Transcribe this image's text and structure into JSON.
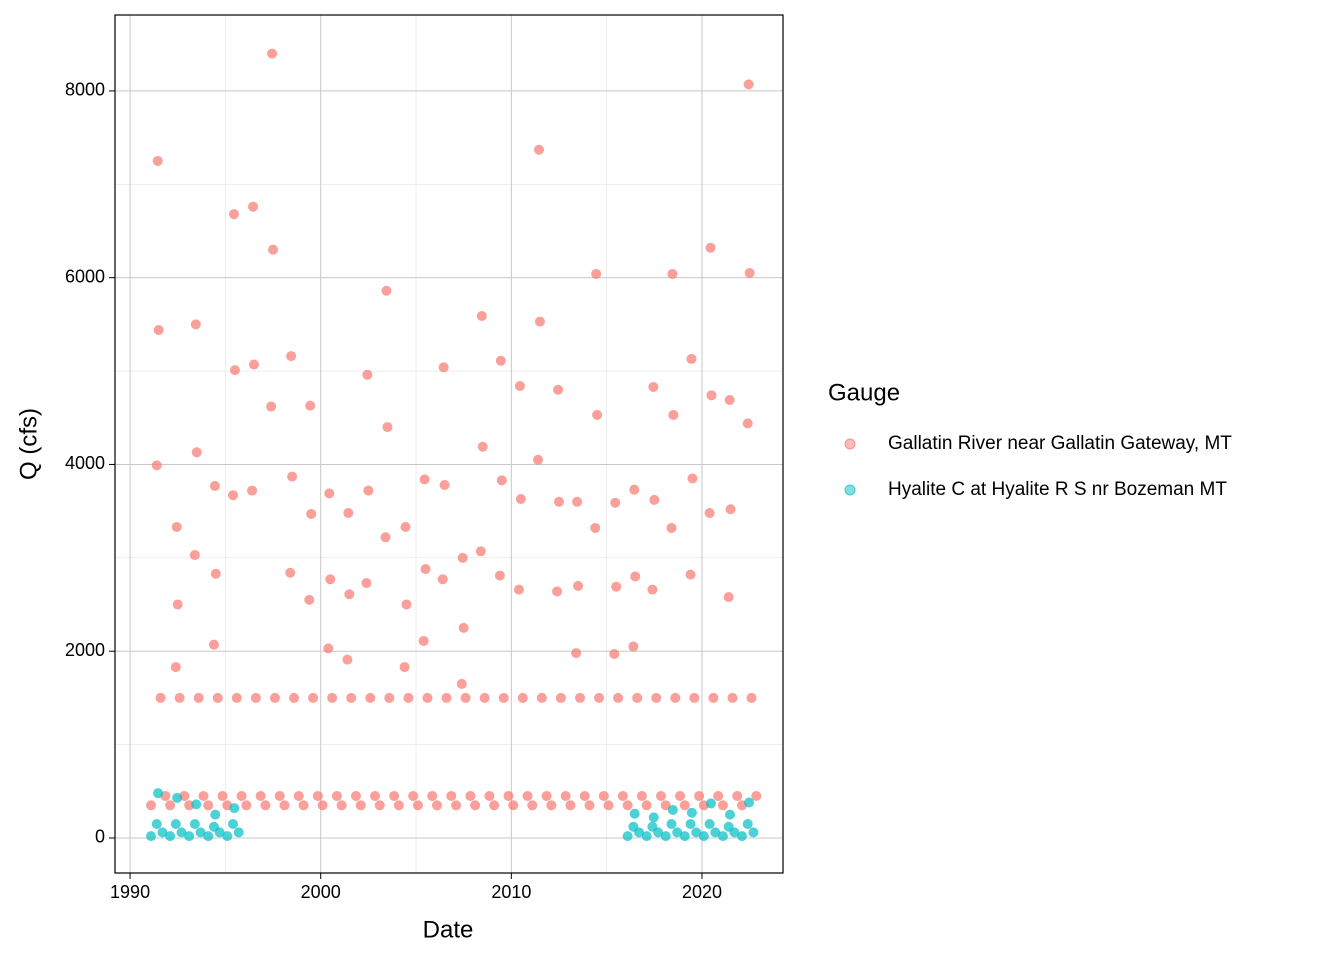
{
  "chart_data": {
    "type": "scatter",
    "x_label": "Date",
    "y_label": "Q (cfs)",
    "legend_title": "Gauge",
    "legend_position": "right",
    "grid": true,
    "xlim": [
      1989.21,
      2024.25
    ],
    "ylim": [
      -375,
      8813
    ],
    "xticks": [
      1990,
      2000,
      2010,
      2020
    ],
    "yticks": [
      0,
      2000,
      4000,
      6000,
      8000
    ],
    "series": [
      {
        "name": "Gallatin River near Gallatin Gateway, MT",
        "color": "#F8766D",
        "x": [
          1991.1,
          1991.4,
          1991.45,
          1991.5,
          1991.6,
          1991.85,
          1992.1,
          1992.4,
          1992.45,
          1992.5,
          1992.6,
          1992.85,
          1993.1,
          1993.4,
          1993.45,
          1993.5,
          1993.6,
          1993.85,
          1994.1,
          1994.4,
          1994.45,
          1994.5,
          1994.6,
          1994.85,
          1995.1,
          1995.4,
          1995.45,
          1995.5,
          1995.6,
          1995.85,
          1996.1,
          1996.4,
          1996.45,
          1996.5,
          1996.6,
          1996.85,
          1997.1,
          1997.4,
          1997.45,
          1997.5,
          1997.6,
          1997.85,
          1998.1,
          1998.4,
          1998.45,
          1998.5,
          1998.6,
          1998.85,
          1999.1,
          1999.4,
          1999.45,
          1999.5,
          1999.6,
          1999.85,
          2000.1,
          2000.4,
          2000.45,
          2000.5,
          2000.6,
          2000.85,
          2001.1,
          2001.4,
          2001.45,
          2001.5,
          2001.6,
          2001.85,
          2002.1,
          2002.4,
          2002.45,
          2002.5,
          2002.6,
          2002.85,
          2003.1,
          2003.4,
          2003.45,
          2003.5,
          2003.6,
          2003.85,
          2004.1,
          2004.4,
          2004.45,
          2004.5,
          2004.6,
          2004.85,
          2005.1,
          2005.4,
          2005.45,
          2005.5,
          2005.6,
          2005.85,
          2006.1,
          2006.4,
          2006.45,
          2006.5,
          2006.6,
          2006.85,
          2007.1,
          2007.4,
          2007.45,
          2007.5,
          2007.6,
          2007.85,
          2008.1,
          2008.4,
          2008.45,
          2008.5,
          2008.6,
          2008.85,
          2009.1,
          2009.4,
          2009.45,
          2009.5,
          2009.6,
          2009.85,
          2010.1,
          2010.4,
          2010.45,
          2010.5,
          2010.6,
          2010.85,
          2011.1,
          2011.4,
          2011.45,
          2011.5,
          2011.6,
          2011.85,
          2012.1,
          2012.4,
          2012.45,
          2012.5,
          2012.6,
          2012.85,
          2013.1,
          2013.4,
          2013.45,
          2013.5,
          2013.6,
          2013.85,
          2014.1,
          2014.4,
          2014.45,
          2014.5,
          2014.6,
          2014.85,
          2015.1,
          2015.4,
          2015.45,
          2015.5,
          2015.6,
          2015.85,
          2016.1,
          2016.4,
          2016.45,
          2016.5,
          2016.6,
          2016.85,
          2017.1,
          2017.4,
          2017.45,
          2017.5,
          2017.6,
          2017.85,
          2018.1,
          2018.4,
          2018.45,
          2018.5,
          2018.6,
          2018.85,
          2019.1,
          2019.4,
          2019.45,
          2019.5,
          2019.6,
          2019.85,
          2020.1,
          2020.4,
          2020.45,
          2020.5,
          2020.6,
          2020.85,
          2021.1,
          2021.4,
          2021.45,
          2021.5,
          2021.6,
          2021.85,
          2022.1,
          2022.4,
          2022.45,
          2022.5,
          2022.6,
          2022.85
        ],
        "values": [
          350,
          3990,
          7250,
          5440,
          1500,
          450,
          350,
          1830,
          3330,
          2500,
          1500,
          450,
          350,
          3030,
          5500,
          4130,
          1500,
          450,
          350,
          2070,
          3770,
          2830,
          1500,
          450,
          350,
          3670,
          6680,
          5010,
          1500,
          450,
          350,
          3720,
          6760,
          5070,
          1500,
          450,
          350,
          4620,
          8400,
          6300,
          1500,
          450,
          350,
          2840,
          5160,
          3870,
          1500,
          450,
          350,
          2550,
          4630,
          3470,
          1500,
          450,
          350,
          2030,
          3690,
          2770,
          1500,
          450,
          350,
          1910,
          3480,
          2610,
          1500,
          450,
          350,
          2730,
          4960,
          3720,
          1500,
          450,
          350,
          3220,
          5860,
          4400,
          1500,
          450,
          350,
          1830,
          3330,
          2500,
          1500,
          450,
          350,
          2110,
          3840,
          2880,
          1500,
          450,
          350,
          2770,
          5040,
          3780,
          1500,
          450,
          350,
          1650,
          3000,
          2250,
          1500,
          450,
          350,
          3070,
          5590,
          4190,
          1500,
          450,
          350,
          2810,
          5110,
          3830,
          1500,
          450,
          350,
          2660,
          4840,
          3630,
          1500,
          450,
          350,
          4050,
          7370,
          5530,
          1500,
          450,
          350,
          2640,
          4800,
          3600,
          1500,
          450,
          350,
          1980,
          3600,
          2700,
          1500,
          450,
          350,
          3320,
          6040,
          4530,
          1500,
          450,
          350,
          1970,
          3590,
          2690,
          1500,
          450,
          350,
          2050,
          3730,
          2800,
          1500,
          450,
          350,
          2660,
          4830,
          3620,
          1500,
          450,
          350,
          3320,
          6040,
          4530,
          1500,
          450,
          350,
          2820,
          5130,
          3850,
          1500,
          450,
          350,
          3480,
          6320,
          4740,
          1500,
          450,
          350,
          2580,
          4690,
          3520,
          1500,
          450,
          350,
          4440,
          8070,
          6050,
          1500,
          450
        ]
      },
      {
        "name": "Hyalite C at Hyalite R S nr Bozeman MT",
        "color": "#00BFC4",
        "x": [
          1991.1,
          1991.4,
          1991.47,
          1991.7,
          1992.1,
          1992.4,
          1992.47,
          1992.7,
          1993.1,
          1993.4,
          1993.47,
          1993.7,
          1994.1,
          1994.4,
          1994.47,
          1994.7,
          1995.1,
          1995.4,
          1995.47,
          1995.7,
          2016.1,
          2016.4,
          2016.47,
          2016.7,
          2017.1,
          2017.4,
          2017.47,
          2017.7,
          2018.1,
          2018.4,
          2018.47,
          2018.7,
          2019.1,
          2019.4,
          2019.47,
          2019.7,
          2020.1,
          2020.4,
          2020.47,
          2020.7,
          2021.1,
          2021.4,
          2021.47,
          2021.7,
          2022.1,
          2022.4,
          2022.47,
          2022.7
        ],
        "values": [
          20,
          150,
          480,
          60,
          20,
          150,
          430,
          60,
          20,
          150,
          360,
          60,
          20,
          120,
          250,
          60,
          20,
          150,
          320,
          60,
          20,
          120,
          260,
          60,
          20,
          120,
          220,
          60,
          20,
          150,
          300,
          60,
          20,
          150,
          270,
          60,
          20,
          150,
          370,
          60,
          20,
          120,
          250,
          60,
          20,
          150,
          380,
          60
        ]
      }
    ]
  }
}
